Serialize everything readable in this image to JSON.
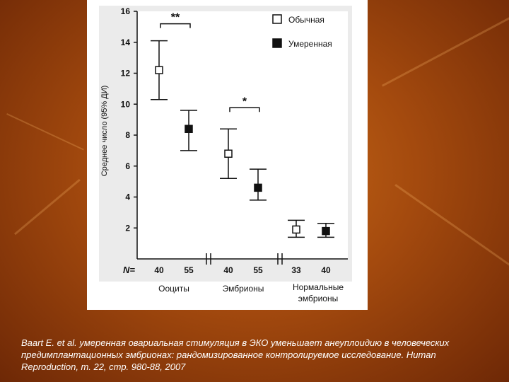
{
  "chart_data": {
    "type": "scatter",
    "ylabel": "Среднее число (95% ДИ)",
    "ylim": [
      0,
      16
    ],
    "yticks": [
      2,
      4,
      6,
      8,
      10,
      12,
      14,
      16
    ],
    "legend": [
      {
        "label": "Обычная",
        "marker": "open-square"
      },
      {
        "label": "Умеренная",
        "marker": "filled-square"
      }
    ],
    "legend_position": "top-right",
    "n_label": "N=",
    "groups": [
      {
        "label": "Ооциты",
        "points": [
          {
            "series": "Обычная",
            "n": "40",
            "mean": 12.2,
            "ci": [
              10.3,
              14.1
            ]
          },
          {
            "series": "Умеренная",
            "n": "55",
            "mean": 8.4,
            "ci": [
              7.0,
              9.6
            ]
          }
        ],
        "significance": "**"
      },
      {
        "label": "Эмбрионы",
        "points": [
          {
            "series": "Обычная",
            "n": "40",
            "mean": 6.8,
            "ci": [
              5.2,
              8.4
            ]
          },
          {
            "series": "Умеренная",
            "n": "55",
            "mean": 4.6,
            "ci": [
              3.8,
              5.8
            ]
          }
        ],
        "significance": "*"
      },
      {
        "label": "Нормальные эмбрионы",
        "points": [
          {
            "series": "Обычная",
            "n": "33",
            "mean": 1.9,
            "ci": [
              1.4,
              2.5
            ]
          },
          {
            "series": "Умеренная",
            "n": "40",
            "mean": 1.8,
            "ci": [
              1.4,
              2.3
            ]
          }
        ],
        "significance": ""
      }
    ]
  },
  "caption": "Baart E. et al. умеренная овариальная стимуляция в ЭКО уменьшает анеуплоидию в человеческих предимплантационных эмбрионах: рандомизированное контролируемое исследование. Human Reproduction, т. 22, стр. 980-88, 2007",
  "colors": {
    "marker": "#111111",
    "background": "#b85a12",
    "panel": "#ffffff",
    "plot_bg": "#ebebeb"
  }
}
